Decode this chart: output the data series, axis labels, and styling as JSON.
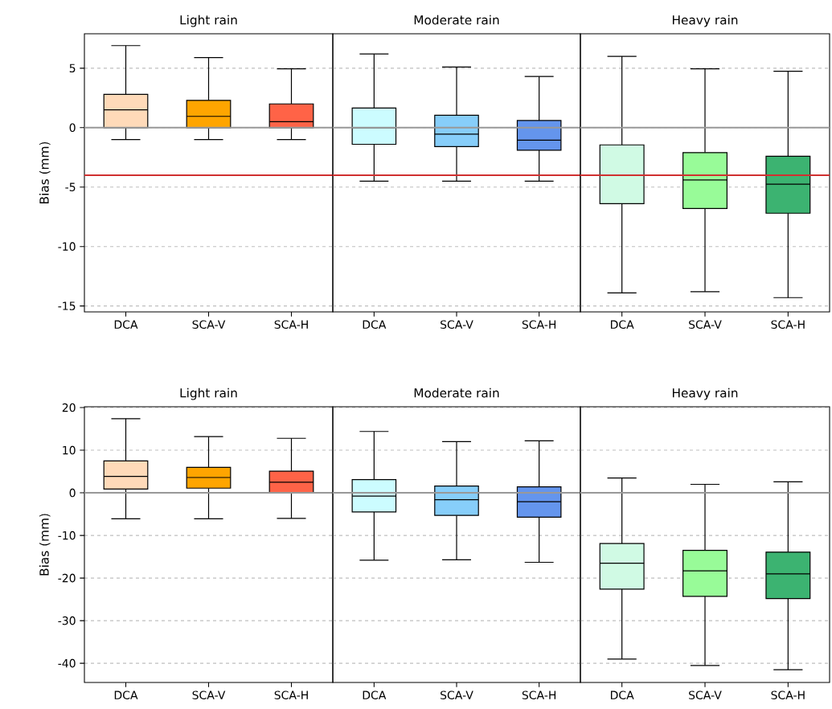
{
  "chart_data": [
    {
      "type": "box",
      "title": "Light rain",
      "ylabel": "Bias (mm)",
      "categories": [
        "DCA",
        "SCA-V",
        "SCA-H"
      ],
      "colors": [
        "#ffdab9",
        "#ffa500",
        "#ff6347"
      ],
      "ylim": [
        -15.5,
        7.9
      ],
      "yticks": [
        5,
        0,
        -5,
        -10,
        -15
      ],
      "grid": "y",
      "ref_lines": [
        {
          "axis": "y",
          "value": 0,
          "color": "#999999"
        },
        {
          "axis": "y",
          "value": -4,
          "color": "#d03030"
        }
      ],
      "boxes": [
        {
          "low": -1.0,
          "q1": 0,
          "median": 1.5,
          "q3": 2.8,
          "high": 6.9
        },
        {
          "low": -1.0,
          "q1": 0,
          "median": 0.95,
          "q3": 2.3,
          "high": 5.9
        },
        {
          "low": -1.0,
          "q1": 0,
          "median": 0.5,
          "q3": 2.0,
          "high": 4.95
        }
      ]
    },
    {
      "type": "box",
      "title": "Moderate rain",
      "categories": [
        "DCA",
        "SCA-V",
        "SCA-H"
      ],
      "colors": [
        "#ccfcff",
        "#87cefa",
        "#6495ed"
      ],
      "ylim": [
        -15.5,
        7.9
      ],
      "yticks": [
        5,
        0,
        -5,
        -10,
        -15
      ],
      "grid": "y",
      "tick_labels": "x",
      "ref_lines": [
        {
          "axis": "y",
          "value": 0,
          "color": "#999999"
        },
        {
          "axis": "y",
          "value": -4,
          "color": "#d03030"
        }
      ],
      "boxes": [
        {
          "low": -4.5,
          "q1": -1.4,
          "median": 0,
          "q3": 1.65,
          "high": 6.2
        },
        {
          "low": -4.5,
          "q1": -1.6,
          "median": -0.55,
          "q3": 1.05,
          "high": 5.1
        },
        {
          "low": -4.5,
          "q1": -1.9,
          "median": -1.05,
          "q3": 0.6,
          "high": 4.3
        }
      ]
    },
    {
      "type": "box",
      "title": "Heavy rain",
      "categories": [
        "DCA",
        "SCA-V",
        "SCA-H"
      ],
      "colors": [
        "#d0fae4",
        "#98fb98",
        "#3cb371"
      ],
      "ylim": [
        -15.5,
        7.9
      ],
      "yticks": [
        5,
        0,
        -5,
        -10,
        -15
      ],
      "grid": "y",
      "tick_labels": "x",
      "ref_lines": [
        {
          "axis": "y",
          "value": 0,
          "color": "#999999"
        },
        {
          "axis": "y",
          "value": -4,
          "color": "#d03030"
        }
      ],
      "boxes": [
        {
          "low": -13.9,
          "q1": -6.4,
          "median": -4.0,
          "q3": -1.45,
          "high": 6.0
        },
        {
          "low": -13.8,
          "q1": -6.8,
          "median": -4.4,
          "q3": -2.1,
          "high": 4.95
        },
        {
          "low": -14.3,
          "q1": -7.2,
          "median": -4.75,
          "q3": -2.4,
          "high": 4.75
        }
      ]
    },
    {
      "type": "box",
      "title": "Light rain",
      "ylabel": "Bias (mm)",
      "categories": [
        "DCA",
        "SCA-V",
        "SCA-H"
      ],
      "colors": [
        "#ffdab9",
        "#ffa500",
        "#ff6347"
      ],
      "ylim": [
        -44.5,
        20.2
      ],
      "yticks": [
        20,
        10,
        0,
        -10,
        -20,
        -30,
        -40
      ],
      "grid": "y",
      "ref_lines": [
        {
          "axis": "y",
          "value": 0,
          "color": "#999999"
        }
      ],
      "boxes": [
        {
          "low": -6.1,
          "q1": 0.9,
          "median": 3.85,
          "q3": 7.5,
          "high": 17.4
        },
        {
          "low": -6.1,
          "q1": 1.1,
          "median": 3.6,
          "q3": 6.0,
          "high": 13.2
        },
        {
          "low": -6.0,
          "q1": 0,
          "median": 2.5,
          "q3": 5.1,
          "high": 12.8
        }
      ]
    },
    {
      "type": "box",
      "title": "Moderate rain",
      "categories": [
        "DCA",
        "SCA-V",
        "SCA-H"
      ],
      "colors": [
        "#ccfcff",
        "#87cefa",
        "#6495ed"
      ],
      "ylim": [
        -44.5,
        20.2
      ],
      "yticks": [
        20,
        10,
        0,
        -10,
        -20,
        -30,
        -40
      ],
      "grid": "y",
      "tick_labels": "x",
      "ref_lines": [
        {
          "axis": "y",
          "value": 0,
          "color": "#999999"
        }
      ],
      "boxes": [
        {
          "low": -15.8,
          "q1": -4.5,
          "median": -0.75,
          "q3": 3.1,
          "high": 14.4
        },
        {
          "low": -15.7,
          "q1": -5.3,
          "median": -1.6,
          "q3": 1.6,
          "high": 12.0
        },
        {
          "low": -16.3,
          "q1": -5.7,
          "median": -2.1,
          "q3": 1.4,
          "high": 12.2
        }
      ]
    },
    {
      "type": "box",
      "title": "Heavy rain",
      "categories": [
        "DCA",
        "SCA-V",
        "SCA-H"
      ],
      "colors": [
        "#d0fae4",
        "#98fb98",
        "#3cb371"
      ],
      "ylim": [
        -44.5,
        20.2
      ],
      "yticks": [
        20,
        10,
        0,
        -10,
        -20,
        -30,
        -40
      ],
      "grid": "y",
      "tick_labels": "x",
      "ref_lines": [
        {
          "axis": "y",
          "value": 0,
          "color": "#999999"
        }
      ],
      "boxes": [
        {
          "low": -39.0,
          "q1": -22.6,
          "median": -16.5,
          "q3": -11.9,
          "high": 3.5
        },
        {
          "low": -40.5,
          "q1": -24.3,
          "median": -18.3,
          "q3": -13.5,
          "high": 2.0
        },
        {
          "low": -41.5,
          "q1": -24.8,
          "median": -19.0,
          "q3": -13.9,
          "high": 2.6
        }
      ]
    }
  ]
}
